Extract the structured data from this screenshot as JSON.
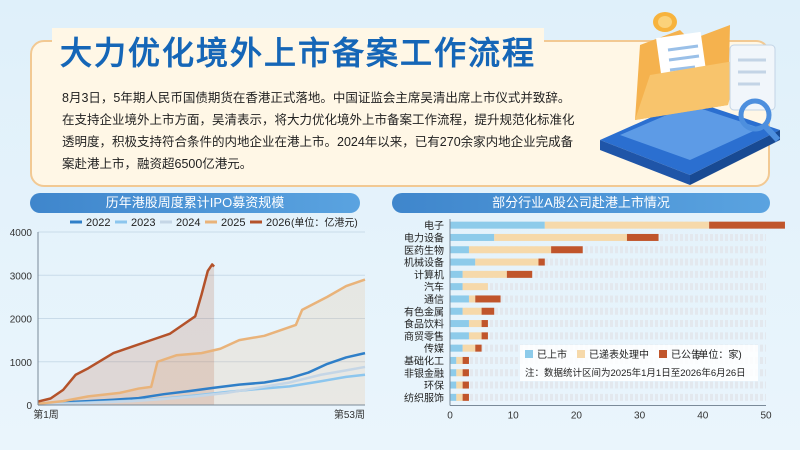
{
  "header": {
    "title": "大力优化境外上市备案工作流程",
    "paragraph": "8月3日，5年期人民币国债期货在香港正式落地。中国证监会主席吴清出席上市仪式并致辞。在支持企业境外上市方面，吴清表示，将大力优化境外上市备案工作流程，提升规范化标准化透明度，积极支持符合条件的内地企业在港上市。2024年以来，已有270余家内地企业完成备案赴港上市，融资超6500亿港元。"
  },
  "colors": {
    "s2022": "#2f7fc8",
    "s2023": "#8cc6ee",
    "s2024": "#c5d6e6",
    "s2025": "#e9b37a",
    "s2026": "#b4522a",
    "listed": "#8dcbea",
    "pending": "#f6d9aa",
    "announced": "#c0552b"
  },
  "left_chart_title": "历年港股周度累计IPO募资规模",
  "right_chart_title": "部分行业A股公司赴港上市情况",
  "chart_data": [
    {
      "type": "line",
      "title": "历年港股周度累计IPO募资规模",
      "unit_label": "(单位：亿港元)",
      "y_ticks": [
        "0",
        "1000",
        "2000",
        "3000",
        "4000"
      ],
      "x_ticks": [
        "第1周",
        "第53周"
      ],
      "ylim": [
        0,
        4000
      ],
      "xlim": [
        1,
        53
      ],
      "series": [
        {
          "name": "2022",
          "colorKey": "s2022",
          "points": [
            [
              1,
              30
            ],
            [
              5,
              60
            ],
            [
              9,
              90
            ],
            [
              13,
              120
            ],
            [
              17,
              160
            ],
            [
              21,
              250
            ],
            [
              25,
              320
            ],
            [
              29,
              400
            ],
            [
              33,
              470
            ],
            [
              37,
              520
            ],
            [
              41,
              620
            ],
            [
              44,
              750
            ],
            [
              47,
              950
            ],
            [
              50,
              1100
            ],
            [
              53,
              1200
            ]
          ]
        },
        {
          "name": "2023",
          "colorKey": "s2023",
          "points": [
            [
              1,
              20
            ],
            [
              6,
              40
            ],
            [
              11,
              70
            ],
            [
              16,
              100
            ],
            [
              21,
              150
            ],
            [
              26,
              220
            ],
            [
              31,
              300
            ],
            [
              36,
              370
            ],
            [
              41,
              430
            ],
            [
              46,
              550
            ],
            [
              50,
              650
            ],
            [
              53,
              700
            ]
          ]
        },
        {
          "name": "2024",
          "colorKey": "s2024",
          "points": [
            [
              1,
              10
            ],
            [
              6,
              30
            ],
            [
              11,
              60
            ],
            [
              16,
              90
            ],
            [
              21,
              140
            ],
            [
              26,
              200
            ],
            [
              31,
              280
            ],
            [
              36,
              400
            ],
            [
              41,
              520
            ],
            [
              46,
              700
            ],
            [
              50,
              800
            ],
            [
              53,
              880
            ]
          ]
        },
        {
          "name": "2025",
          "colorKey": "s2025",
          "points": [
            [
              1,
              30
            ],
            [
              5,
              90
            ],
            [
              9,
              200
            ],
            [
              14,
              280
            ],
            [
              17,
              380
            ],
            [
              19,
              420
            ],
            [
              20,
              1000
            ],
            [
              23,
              1150
            ],
            [
              27,
              1200
            ],
            [
              30,
              1300
            ],
            [
              33,
              1500
            ],
            [
              37,
              1600
            ],
            [
              40,
              1750
            ],
            [
              42,
              1850
            ],
            [
              43,
              2200
            ],
            [
              47,
              2500
            ],
            [
              50,
              2750
            ],
            [
              53,
              2900
            ]
          ]
        },
        {
          "name": "2026",
          "colorKey": "s2026",
          "points": [
            [
              1,
              80
            ],
            [
              3,
              150
            ],
            [
              5,
              350
            ],
            [
              7,
              700
            ],
            [
              9,
              850
            ],
            [
              13,
              1200
            ],
            [
              16,
              1350
            ],
            [
              19,
              1500
            ],
            [
              22,
              1650
            ],
            [
              24,
              1850
            ],
            [
              26,
              2050
            ],
            [
              27,
              2550
            ],
            [
              28,
              3100
            ],
            [
              28.7,
              3250
            ],
            [
              29,
              3200
            ]
          ]
        }
      ]
    },
    {
      "type": "bar",
      "title": "部分行业A股公司赴港上市情况",
      "unit_label": "(单位：家)",
      "note": "注：数据统计区间为2025年1月1日至2026年6月26日",
      "x_ticks": [
        "0",
        "10",
        "20",
        "30",
        "40",
        "50"
      ],
      "xlim": [
        0,
        50
      ],
      "categories": [
        "电子",
        "电力设备",
        "医药生物",
        "机械设备",
        "计算机",
        "汽车",
        "通信",
        "有色金属",
        "食品饮料",
        "商贸零售",
        "传媒",
        "基础化工",
        "非银金融",
        "环保",
        "纺织服饰"
      ],
      "series": [
        {
          "name": "已上市",
          "colorKey": "listed",
          "values": [
            15,
            7,
            3,
            4,
            2,
            2,
            3,
            2,
            3,
            3,
            2,
            1,
            1,
            1,
            1
          ]
        },
        {
          "name": "已递表处理中",
          "colorKey": "pending",
          "values": [
            26,
            21,
            13,
            10,
            7,
            4,
            1,
            3,
            2,
            2,
            2,
            1,
            1,
            1,
            1
          ]
        },
        {
          "name": "已公告",
          "colorKey": "announced",
          "values": [
            12,
            5,
            5,
            1,
            4,
            0,
            4,
            2,
            1,
            1,
            1,
            1,
            1,
            1,
            1
          ]
        }
      ]
    }
  ]
}
